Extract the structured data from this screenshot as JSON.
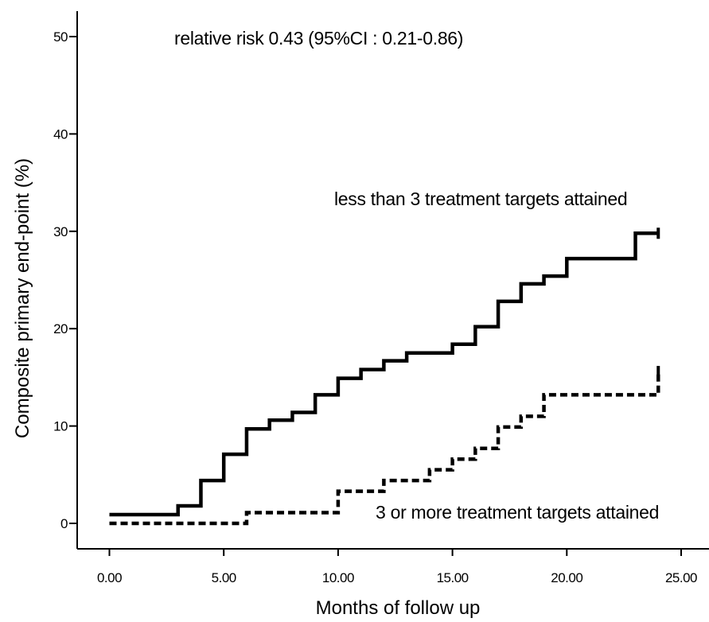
{
  "chart_data": {
    "type": "line",
    "step": true,
    "title": "",
    "xlabel": "Months of follow up",
    "ylabel": "Composite primary end-point (%)",
    "xlim": [
      0,
      25
    ],
    "ylim": [
      0,
      50
    ],
    "xticks": [
      0,
      5,
      10,
      15,
      20,
      25
    ],
    "xtick_labels": [
      "0.00",
      "5.00",
      "10.00",
      "15.00",
      "20.00",
      "25.00"
    ],
    "yticks": [
      0,
      10,
      20,
      30,
      40,
      50
    ],
    "ytick_labels": [
      "0",
      "10",
      "20",
      "30",
      "40",
      "50"
    ],
    "grid": false,
    "annotations": {
      "relative_risk": "relative risk 0.43 (95%CI : 0.21-0.86)"
    },
    "series": [
      {
        "name": "less than 3 treatment targets attained",
        "style": "solid",
        "color": "#000000",
        "x": [
          0,
          3,
          4,
          5,
          6,
          7,
          8,
          9,
          10,
          11,
          12,
          13,
          15,
          16,
          17,
          18,
          19,
          20,
          23,
          24
        ],
        "y": [
          0.9,
          1.8,
          4.4,
          7.1,
          9.7,
          10.6,
          11.4,
          13.2,
          14.9,
          15.8,
          16.7,
          17.5,
          18.4,
          20.2,
          22.8,
          24.6,
          25.4,
          27.2,
          29.8,
          29.8
        ],
        "censored_x": [
          24
        ]
      },
      {
        "name": "3 or more treatment targets attained",
        "style": "dashed",
        "color": "#000000",
        "x": [
          0,
          6,
          10,
          12,
          14,
          15,
          16,
          17,
          18,
          19,
          24
        ],
        "y": [
          0,
          1.1,
          3.3,
          4.4,
          5.5,
          6.6,
          7.7,
          9.9,
          11.0,
          13.2,
          15.6
        ],
        "censored_x": [
          24
        ]
      }
    ]
  }
}
